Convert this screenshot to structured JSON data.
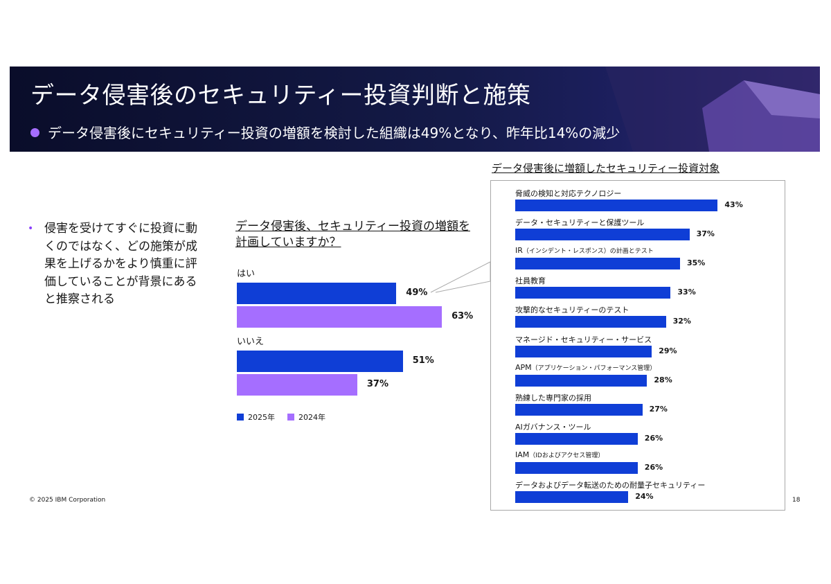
{
  "header": {
    "title": "データ侵害後のセキュリティー投資判断と施策",
    "subtitle": "データ侵害後にセキュリティー投資の増額を検討した組織は49%となり、昨年比14%の減少"
  },
  "bullet": "侵害を受けてすぐに投資に動くのではなく、どの施策が成果を上げるかをより慎重に評価していることが背景にあると推察される",
  "colors": {
    "y2025": "#0f3ed6",
    "y2024": "#a56eff",
    "accent": "#8a3ffc"
  },
  "chart_data": [
    {
      "type": "bar",
      "orientation": "horizontal",
      "title": "データ侵害後、セキュリティー投資の増額を計画していますか？",
      "categories": [
        "はい",
        "いいえ"
      ],
      "series": [
        {
          "name": "2025年",
          "values": [
            49,
            51
          ],
          "labels": [
            "49%",
            "51%"
          ]
        },
        {
          "name": "2024年",
          "values": [
            63,
            37
          ],
          "labels": [
            "63%",
            "37%"
          ]
        }
      ],
      "xlim": [
        0,
        100
      ]
    },
    {
      "type": "bar",
      "orientation": "horizontal",
      "title": "データ侵害後に増額したセキュリティー投資対象",
      "items": [
        {
          "main": "脅威の検知と対応テクノロジー",
          "sub": "",
          "value": 43,
          "label": "43%"
        },
        {
          "main": "データ・セキュリティーと保護ツール",
          "sub": "",
          "value": 37,
          "label": "37%"
        },
        {
          "main": "IR",
          "sub": "（インシデント・レスポンス）の計画とテスト",
          "value": 35,
          "label": "35%"
        },
        {
          "main": "社員教育",
          "sub": "",
          "value": 33,
          "label": "33%"
        },
        {
          "main": "攻撃的なセキュリティーのテスト",
          "sub": "",
          "value": 32,
          "label": "32%"
        },
        {
          "main": "マネージド・セキュリティー・サービス",
          "sub": "",
          "value": 29,
          "label": "29%"
        },
        {
          "main": "APM",
          "sub": "（アプリケーション・パフォーマンス管理）",
          "value": 28,
          "label": "28%"
        },
        {
          "main": "熟練した専門家の採用",
          "sub": "",
          "value": 27,
          "label": "27%"
        },
        {
          "main": "AIガバナンス・ツール",
          "sub": "",
          "value": 26,
          "label": "26%"
        },
        {
          "main": "IAM",
          "sub": "（IDおよびアクセス管理）",
          "value": 26,
          "label": "26%"
        },
        {
          "main": "データおよびデータ転送のための耐量子セキュリティー",
          "sub": "",
          "value": 24,
          "label": "24%"
        }
      ],
      "xlim": [
        0,
        50
      ]
    }
  ],
  "footer": {
    "copyright": "© 2025 IBM Corporation",
    "page": "18"
  }
}
